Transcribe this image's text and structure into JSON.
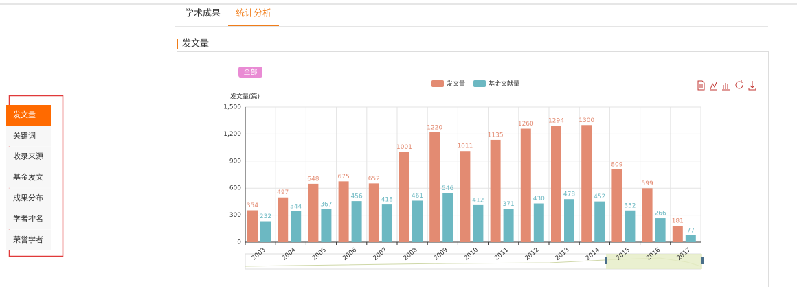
{
  "tabs": {
    "items": [
      "学术成果",
      "统计分析"
    ],
    "active": 1
  },
  "sidebar": {
    "items": [
      "发文量",
      "关键词",
      "收录来源",
      "基金发文",
      "成果分布",
      "学者排名",
      "荣誉学者"
    ],
    "active": 0
  },
  "section_title": "发文量",
  "filter_badge": "全部",
  "chart_data": {
    "type": "bar",
    "y_label": "发文量(篇)",
    "categories": [
      "2003",
      "2004",
      "2005",
      "2006",
      "2007",
      "2008",
      "2009",
      "2010",
      "2011",
      "2012",
      "2013",
      "2014",
      "2015",
      "2016",
      "2017"
    ],
    "series": [
      {
        "name": "发文量",
        "color": "#e38b72",
        "values": [
          354,
          497,
          648,
          675,
          652,
          1001,
          1220,
          1011,
          1135,
          1260,
          1294,
          1300,
          809,
          599,
          181
        ]
      },
      {
        "name": "基金文献量",
        "color": "#6cb8c2",
        "values": [
          232,
          344,
          367,
          456,
          418,
          461,
          546,
          412,
          371,
          430,
          478,
          452,
          352,
          266,
          77
        ]
      }
    ],
    "ylim": [
      0,
      1500
    ],
    "yticks": [
      0,
      300,
      600,
      900,
      {
        "value": 1200,
        "label": "1,200"
      },
      {
        "value": 1500,
        "label": "1,500"
      }
    ],
    "grid": true,
    "legend": "top"
  }
}
